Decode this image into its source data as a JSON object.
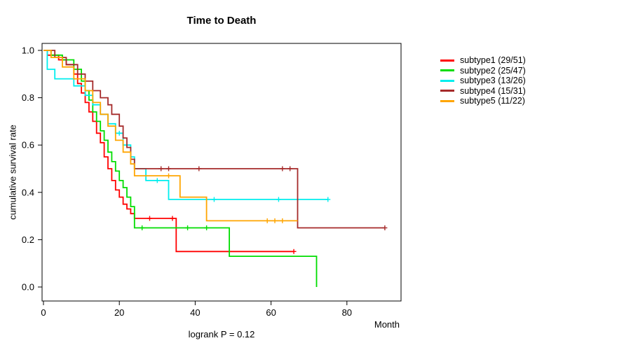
{
  "chart_data": {
    "type": "line",
    "subtype": "kaplan-meier-step",
    "title": "Time to Death",
    "xlabel": "Month",
    "ylabel": "cumulative survival rate",
    "footnote": "logrank P = 0.12",
    "xlim": [
      0,
      94
    ],
    "ylim": [
      0,
      1
    ],
    "xticks": [
      0,
      20,
      40,
      60,
      80
    ],
    "yticks": [
      "0.0",
      "0.2",
      "0.4",
      "0.6",
      "0.8",
      "1.0"
    ],
    "grid": false,
    "legend_position": "right-outside",
    "series": [
      {
        "name": "subtype1",
        "label": "subtype1 (29/51)",
        "color": "#FF0000",
        "points": [
          [
            0,
            1.0
          ],
          [
            1,
            0.98
          ],
          [
            4,
            0.96
          ],
          [
            6,
            0.94
          ],
          [
            8,
            0.9
          ],
          [
            9,
            0.86
          ],
          [
            10,
            0.82
          ],
          [
            11,
            0.78
          ],
          [
            12,
            0.74
          ],
          [
            13,
            0.7
          ],
          [
            14,
            0.65
          ],
          [
            15,
            0.61
          ],
          [
            16,
            0.55
          ],
          [
            17,
            0.5
          ],
          [
            18,
            0.45
          ],
          [
            19,
            0.41
          ],
          [
            20,
            0.38
          ],
          [
            21,
            0.35
          ],
          [
            22,
            0.33
          ],
          [
            23,
            0.31
          ],
          [
            24,
            0.29
          ],
          [
            35,
            0.15
          ],
          [
            66,
            0.15
          ]
        ],
        "censors": [
          [
            2,
            0.98
          ],
          [
            28,
            0.29
          ],
          [
            34,
            0.29
          ],
          [
            66,
            0.15
          ]
        ]
      },
      {
        "name": "subtype2",
        "label": "subtype2 (25/47)",
        "color": "#00DD00",
        "points": [
          [
            0,
            1.0
          ],
          [
            2,
            0.98
          ],
          [
            5,
            0.96
          ],
          [
            8,
            0.92
          ],
          [
            10,
            0.87
          ],
          [
            11,
            0.83
          ],
          [
            12,
            0.79
          ],
          [
            13,
            0.74
          ],
          [
            14,
            0.7
          ],
          [
            15,
            0.66
          ],
          [
            16,
            0.62
          ],
          [
            17,
            0.57
          ],
          [
            18,
            0.53
          ],
          [
            19,
            0.49
          ],
          [
            20,
            0.45
          ],
          [
            21,
            0.42
          ],
          [
            22,
            0.38
          ],
          [
            23,
            0.34
          ],
          [
            24,
            0.25
          ],
          [
            49,
            0.13
          ],
          [
            72,
            0.0
          ]
        ],
        "censors": [
          [
            26,
            0.25
          ],
          [
            38,
            0.25
          ],
          [
            43,
            0.25
          ]
        ]
      },
      {
        "name": "subtype3",
        "label": "subtype3 (13/26)",
        "color": "#00EEEE",
        "points": [
          [
            0,
            1.0
          ],
          [
            1,
            0.92
          ],
          [
            3,
            0.88
          ],
          [
            8,
            0.85
          ],
          [
            11,
            0.81
          ],
          [
            13,
            0.77
          ],
          [
            15,
            0.73
          ],
          [
            17,
            0.69
          ],
          [
            19,
            0.65
          ],
          [
            21,
            0.6
          ],
          [
            23,
            0.55
          ],
          [
            24,
            0.5
          ],
          [
            27,
            0.45
          ],
          [
            33,
            0.37
          ],
          [
            75,
            0.37
          ]
        ],
        "censors": [
          [
            20,
            0.65
          ],
          [
            30,
            0.45
          ],
          [
            45,
            0.37
          ],
          [
            62,
            0.37
          ],
          [
            75,
            0.37
          ]
        ]
      },
      {
        "name": "subtype4",
        "label": "subtype4 (15/31)",
        "color": "#A52A2A",
        "points": [
          [
            0,
            1.0
          ],
          [
            3,
            0.97
          ],
          [
            6,
            0.94
          ],
          [
            9,
            0.9
          ],
          [
            11,
            0.87
          ],
          [
            13,
            0.83
          ],
          [
            15,
            0.8
          ],
          [
            17,
            0.77
          ],
          [
            18,
            0.73
          ],
          [
            20,
            0.68
          ],
          [
            21,
            0.63
          ],
          [
            22,
            0.59
          ],
          [
            23,
            0.54
          ],
          [
            24,
            0.5
          ],
          [
            67,
            0.25
          ],
          [
            90,
            0.25
          ]
        ],
        "censors": [
          [
            31,
            0.5
          ],
          [
            33,
            0.5
          ],
          [
            41,
            0.5
          ],
          [
            63,
            0.5
          ],
          [
            65,
            0.5
          ],
          [
            90,
            0.25
          ]
        ]
      },
      {
        "name": "subtype5",
        "label": "subtype5 (11/22)",
        "color": "#FFA500",
        "points": [
          [
            0,
            1.0
          ],
          [
            2,
            0.97
          ],
          [
            5,
            0.93
          ],
          [
            8,
            0.88
          ],
          [
            11,
            0.83
          ],
          [
            13,
            0.78
          ],
          [
            15,
            0.73
          ],
          [
            17,
            0.68
          ],
          [
            19,
            0.62
          ],
          [
            21,
            0.57
          ],
          [
            23,
            0.52
          ],
          [
            24,
            0.47
          ],
          [
            36,
            0.38
          ],
          [
            43,
            0.28
          ],
          [
            67,
            0.28
          ]
        ],
        "censors": [
          [
            33,
            0.47
          ],
          [
            59,
            0.28
          ],
          [
            61,
            0.28
          ],
          [
            63,
            0.28
          ]
        ]
      }
    ]
  }
}
